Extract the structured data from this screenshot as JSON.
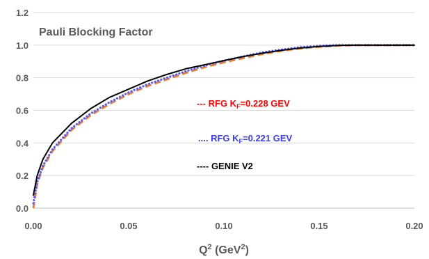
{
  "chart_data": {
    "type": "line",
    "title": "Pauli Blocking Factor",
    "xlabel": "Q²",
    "xlabel_base": "Q",
    "xlabel_sup": "2",
    "xlabel_units_open": " (GeV",
    "xlabel_units_sup": "2",
    "xlabel_units_close": ")",
    "ylabel": "",
    "xlim": [
      0,
      0.2
    ],
    "ylim": [
      0,
      1.2
    ],
    "x_ticks": [
      "0.00",
      "0.05",
      "0.10",
      "0.15",
      "0.20"
    ],
    "y_ticks": [
      "0.0",
      "0.2",
      "0.4",
      "0.6",
      "0.8",
      "1.0",
      "1.2"
    ],
    "grid": "horizontal",
    "legend_placement": "center-right",
    "series": [
      {
        "name": "RFG KF=0.228 GEV",
        "legend_prefix": "--- ",
        "legend_main": "RFG K",
        "legend_sub": "F",
        "legend_suffix": "=0.228 GEV",
        "color": "#ED7D31",
        "legend_color": "#FF0000",
        "style": "dashed",
        "x": [
          0.0,
          0.002,
          0.005,
          0.01,
          0.02,
          0.03,
          0.04,
          0.05,
          0.06,
          0.07,
          0.08,
          0.09,
          0.1,
          0.11,
          0.12,
          0.13,
          0.14,
          0.15,
          0.16,
          0.17,
          0.18,
          0.19,
          0.2
        ],
        "y": [
          0.0,
          0.15,
          0.25,
          0.35,
          0.48,
          0.57,
          0.64,
          0.7,
          0.75,
          0.79,
          0.83,
          0.865,
          0.895,
          0.92,
          0.945,
          0.965,
          0.98,
          0.99,
          0.997,
          1.0,
          1.0,
          1.0,
          1.0
        ]
      },
      {
        "name": "RFG KF=0.221 GEV",
        "legend_prefix": ".... ",
        "legend_main": "RFG K",
        "legend_sub": "F",
        "legend_suffix": "=0.221 GEV",
        "color": "#5B5BF5",
        "legend_color": "#3A3AF0",
        "style": "dotted",
        "x": [
          0.0,
          0.002,
          0.005,
          0.01,
          0.02,
          0.03,
          0.04,
          0.05,
          0.06,
          0.07,
          0.08,
          0.09,
          0.1,
          0.11,
          0.12,
          0.13,
          0.14,
          0.15,
          0.16,
          0.17,
          0.18,
          0.19,
          0.2
        ],
        "y": [
          0.03,
          0.16,
          0.26,
          0.36,
          0.49,
          0.58,
          0.65,
          0.71,
          0.76,
          0.8,
          0.84,
          0.875,
          0.905,
          0.93,
          0.955,
          0.972,
          0.987,
          0.996,
          1.0,
          1.0,
          1.0,
          1.0,
          1.0
        ]
      },
      {
        "name": "GENIE V2",
        "legend_prefix": "---- ",
        "legend_main": "GENIE V2",
        "legend_sub": "",
        "legend_suffix": "",
        "color": "#000000",
        "legend_color": "#000000",
        "style": "solid",
        "x": [
          0.0,
          0.002,
          0.005,
          0.01,
          0.02,
          0.03,
          0.04,
          0.05,
          0.06,
          0.07,
          0.08,
          0.09,
          0.1,
          0.11,
          0.12,
          0.13,
          0.14,
          0.15,
          0.16,
          0.17,
          0.18,
          0.19,
          0.2
        ],
        "y": [
          0.08,
          0.2,
          0.3,
          0.4,
          0.52,
          0.61,
          0.68,
          0.73,
          0.78,
          0.82,
          0.855,
          0.88,
          0.905,
          0.93,
          0.95,
          0.968,
          0.982,
          0.992,
          0.998,
          1.0,
          1.0,
          1.0,
          1.0
        ]
      }
    ]
  }
}
